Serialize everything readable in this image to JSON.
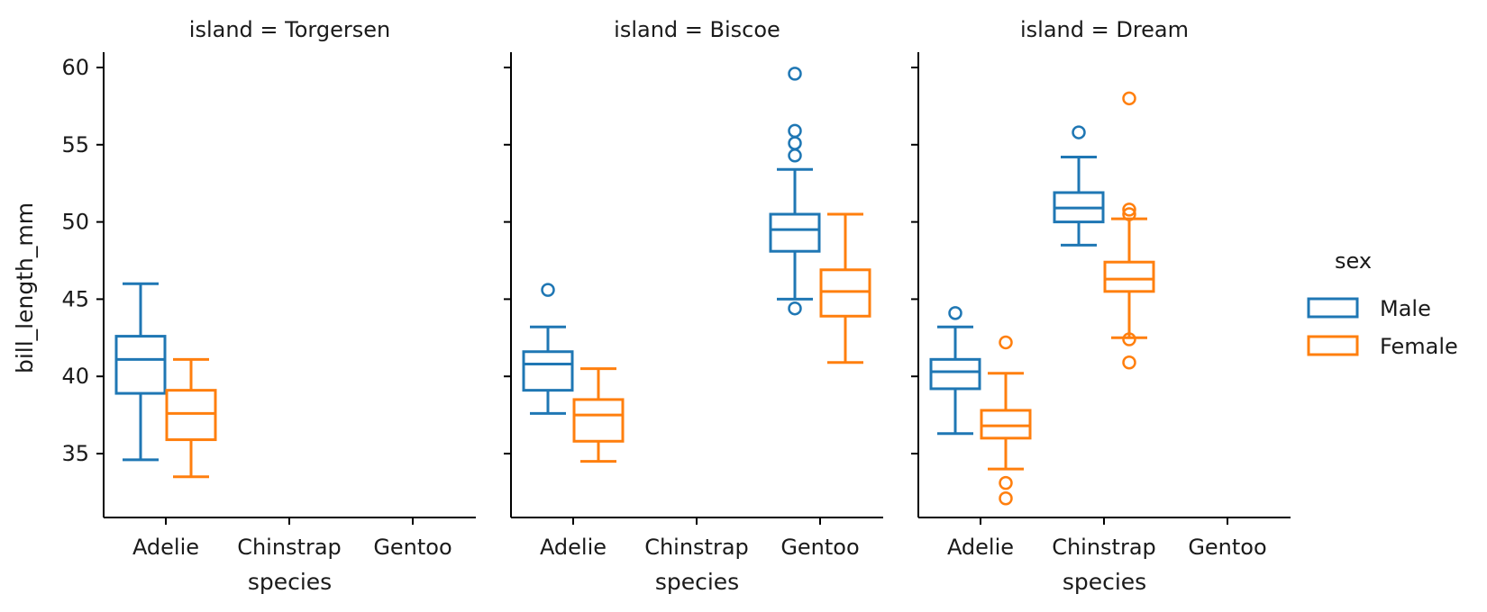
{
  "chart_data": {
    "type": "box",
    "ylabel": "bill_length_mm",
    "xlabel": "species",
    "categories": [
      "Adelie",
      "Chinstrap",
      "Gentoo"
    ],
    "ylim": [
      31,
      61
    ],
    "yticks": [
      35,
      40,
      45,
      50,
      55,
      60
    ],
    "hue": {
      "title": "sex",
      "entries": [
        {
          "name": "Male",
          "color": "#1f77b4"
        },
        {
          "name": "Female",
          "color": "#ff7f0e"
        }
      ]
    },
    "panels": [
      {
        "title": "island = Torgersen",
        "boxes": [
          {
            "category": "Adelie",
            "sex": "Male",
            "whislo": 34.6,
            "q1": 38.9,
            "med": 41.1,
            "q3": 42.6,
            "whishi": 46.0,
            "fliers": []
          },
          {
            "category": "Adelie",
            "sex": "Female",
            "whislo": 33.5,
            "q1": 35.9,
            "med": 37.6,
            "q3": 39.1,
            "whishi": 41.1,
            "fliers": []
          }
        ]
      },
      {
        "title": "island = Biscoe",
        "boxes": [
          {
            "category": "Adelie",
            "sex": "Male",
            "whislo": 37.6,
            "q1": 39.1,
            "med": 40.8,
            "q3": 41.6,
            "whishi": 43.2,
            "fliers": [
              45.6
            ]
          },
          {
            "category": "Adelie",
            "sex": "Female",
            "whislo": 34.5,
            "q1": 35.8,
            "med": 37.5,
            "q3": 38.5,
            "whishi": 40.5,
            "fliers": []
          },
          {
            "category": "Gentoo",
            "sex": "Male",
            "whislo": 45.0,
            "q1": 48.1,
            "med": 49.5,
            "q3": 50.5,
            "whishi": 53.4,
            "fliers": [
              44.4,
              54.3,
              55.1,
              55.9,
              59.6
            ]
          },
          {
            "category": "Gentoo",
            "sex": "Female",
            "whislo": 40.9,
            "q1": 43.9,
            "med": 45.5,
            "q3": 46.9,
            "whishi": 50.5,
            "fliers": []
          }
        ]
      },
      {
        "title": "island = Dream",
        "boxes": [
          {
            "category": "Adelie",
            "sex": "Male",
            "whislo": 36.3,
            "q1": 39.2,
            "med": 40.3,
            "q3": 41.1,
            "whishi": 43.2,
            "fliers": [
              44.1
            ]
          },
          {
            "category": "Adelie",
            "sex": "Female",
            "whislo": 34.0,
            "q1": 36.0,
            "med": 36.8,
            "q3": 37.8,
            "whishi": 40.2,
            "fliers": [
              33.1,
              32.1,
              42.2
            ]
          },
          {
            "category": "Chinstrap",
            "sex": "Male",
            "whislo": 48.5,
            "q1": 50.0,
            "med": 50.9,
            "q3": 51.9,
            "whishi": 54.2,
            "fliers": [
              55.8
            ]
          },
          {
            "category": "Chinstrap",
            "sex": "Female",
            "whislo": 42.5,
            "q1": 45.5,
            "med": 46.3,
            "q3": 47.4,
            "whishi": 50.2,
            "fliers": [
              40.9,
              42.4,
              50.5,
              50.8,
              58.0
            ]
          }
        ]
      }
    ]
  }
}
